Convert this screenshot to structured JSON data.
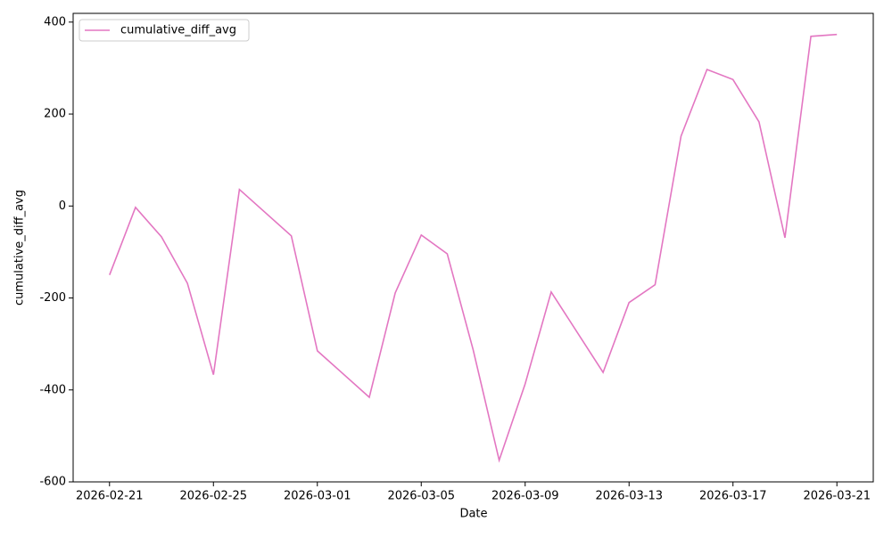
{
  "chart_data": {
    "type": "line",
    "xlabel": "Date",
    "ylabel": "cumulative_diff_avg",
    "x": [
      "2026-02-21",
      "2026-02-22",
      "2026-02-23",
      "2026-02-24",
      "2026-02-25",
      "2026-02-26",
      "2026-02-28",
      "2026-03-01",
      "2026-03-03",
      "2026-03-04",
      "2026-03-05",
      "2026-03-06",
      "2026-03-07",
      "2026-03-08",
      "2026-03-09",
      "2026-03-10",
      "2026-03-12",
      "2026-03-13",
      "2026-03-14",
      "2026-03-15",
      "2026-03-16",
      "2026-03-17",
      "2026-03-18",
      "2026-03-19",
      "2026-03-20",
      "2026-03-21"
    ],
    "series": [
      {
        "name": "cumulative_diff_avg",
        "color": "#e377c2",
        "values": [
          -150,
          -3,
          -67,
          -168,
          -367,
          36,
          -65,
          -315,
          -416,
          -189,
          -63,
          -104,
          -313,
          -553,
          -387,
          -187,
          -362,
          -210,
          -171,
          152,
          297,
          275,
          183,
          -69,
          369,
          373
        ]
      }
    ],
    "xticks": [
      "2026-02-21",
      "2026-02-25",
      "2026-03-01",
      "2026-03-05",
      "2026-03-09",
      "2026-03-13",
      "2026-03-17",
      "2026-03-21"
    ],
    "ylim": [
      -600,
      419
    ],
    "yticks": [
      -600,
      -400,
      -200,
      0,
      200,
      400
    ],
    "legend": "upper left",
    "grid": false
  }
}
